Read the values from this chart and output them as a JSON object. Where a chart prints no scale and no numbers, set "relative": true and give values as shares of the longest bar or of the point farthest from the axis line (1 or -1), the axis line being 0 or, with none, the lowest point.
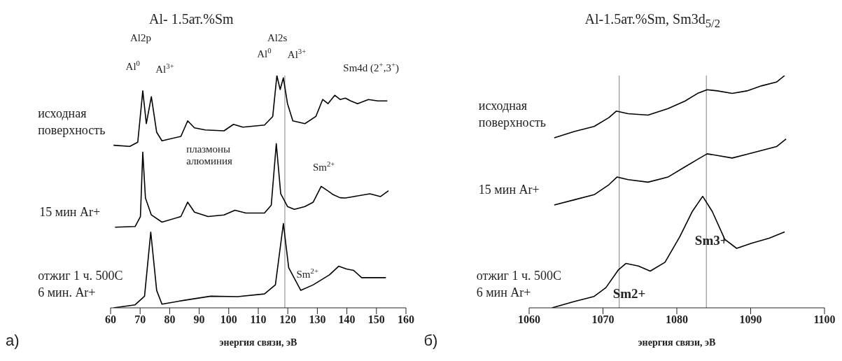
{
  "chart_data": [
    {
      "type": "line",
      "title": "Al- 1.5ат.%Sm",
      "xlabel": "энергия связи, эВ",
      "relative": true,
      "marker": "none",
      "line_style": "solid",
      "xlim": [
        60,
        160
      ],
      "xticks": [
        60,
        70,
        80,
        90,
        100,
        110,
        120,
        130,
        140,
        150,
        160
      ],
      "series": [
        {
          "name": "исходная\nповерхность",
          "color": "#000000",
          "x": [
            61.0,
            66.5,
            69.2,
            70.9,
            72.1,
            73.8,
            75.6,
            77.4,
            83.8,
            86.1,
            88.4,
            92.1,
            98.4,
            101.6,
            104.8,
            112.1,
            114.9,
            116.3,
            117.4,
            118.5,
            119.9,
            121.7,
            125.8,
            129.5,
            131.8,
            133.6,
            135.9,
            137.7,
            139.5,
            141.3,
            143.6,
            147.3,
            150.5,
            153.7
          ],
          "values": [
            0.7,
            0.695,
            0.713,
            0.934,
            0.793,
            0.909,
            0.756,
            0.719,
            0.738,
            0.805,
            0.775,
            0.766,
            0.762,
            0.79,
            0.778,
            0.787,
            0.824,
            1.0,
            0.94,
            0.99,
            0.879,
            0.805,
            0.793,
            0.824,
            0.897,
            0.879,
            0.915,
            0.897,
            0.903,
            0.891,
            0.879,
            0.897,
            0.891,
            0.891
          ]
        },
        {
          "name": "15 мин Ar+",
          "color": "#000000",
          "x": [
            61.5,
            68.3,
            70.1,
            70.9,
            71.8,
            73.8,
            77.4,
            83.8,
            86.1,
            88.4,
            93.0,
            98.4,
            102.1,
            105.8,
            112.1,
            114.4,
            116.1,
            117.6,
            119.9,
            122.2,
            125.8,
            128.6,
            131.3,
            134.1,
            135.4,
            137.7,
            139.5,
            142.3,
            147.8,
            151.4,
            154.1
          ],
          "values": [
            0.347,
            0.35,
            0.393,
            0.67,
            0.473,
            0.4,
            0.369,
            0.393,
            0.455,
            0.412,
            0.393,
            0.4,
            0.42,
            0.408,
            0.408,
            0.442,
            0.707,
            0.491,
            0.436,
            0.424,
            0.436,
            0.455,
            0.523,
            0.499,
            0.487,
            0.474,
            0.473,
            0.479,
            0.491,
            0.479,
            0.504
          ]
        },
        {
          "name": "отжиг 1 ч. 500C\n6 мин. Ar+",
          "color": "#000000",
          "x": [
            61.0,
            68.3,
            71.5,
            73.6,
            75.6,
            77.4,
            84.7,
            93.9,
            103.0,
            112.1,
            115.8,
            118.5,
            120.3,
            124.4,
            128.6,
            134.1,
            137.2,
            139.9,
            142.3,
            145.0,
            148.6,
            153.2
          ],
          "values": [
            0.0,
            0.013,
            0.05,
            0.326,
            0.075,
            0.016,
            0.032,
            0.05,
            0.048,
            0.06,
            0.099,
            0.363,
            0.173,
            0.075,
            0.099,
            0.142,
            0.179,
            0.167,
            0.161,
            0.13,
            0.13,
            0.13
          ]
        }
      ],
      "ref_lines": [
        {
          "axis": "x",
          "value": 119,
          "color": "#808080"
        }
      ],
      "annotations": [
        {
          "text": "Al$^{0}$",
          "x": 70.9,
          "y": 0.934
        },
        {
          "text": "Al$^{3+}$",
          "x": 73.8,
          "y": 0.909
        },
        {
          "text": "Al$^{0}$",
          "x": 116.3,
          "y": 1.0
        },
        {
          "text": "Al$^{3+}$",
          "x": 118.5,
          "y": 0.99
        },
        {
          "text": "Sm4d (2$^{+}$,3$^{+}$)",
          "x": 135.9,
          "y": 0.915
        },
        {
          "text": "плазмоны\nалюминия",
          "x": 86.1,
          "y": 0.805
        },
        {
          "text": "Sm$^{2+}$",
          "x": 131.3,
          "y": 0.523
        },
        {
          "text": "Sm$^{2+}$",
          "x": 128.6,
          "y": 0.099
        },
        "Al2p",
        "Al2s",
        "а)"
      ]
    },
    {
      "type": "line",
      "title": "Al-1.5ат.%Sm, Sm3d$_{5/2}$",
      "xlabel": "энергия связи, эВ",
      "relative": true,
      "marker": "none",
      "line_style": "solid",
      "xlim": [
        1060,
        1100
      ],
      "xticks": [
        1060,
        1070,
        1080,
        1090,
        1100
      ],
      "series": [
        {
          "name": "исходная\nповерхность",
          "color": "#000000",
          "x": [
            1063.4,
            1066.1,
            1068.8,
            1070.8,
            1071.8,
            1073.4,
            1076.1,
            1078.8,
            1081.1,
            1082.8,
            1084.1,
            1085.5,
            1087.5,
            1089.5,
            1091.5,
            1093.5,
            1094.6
          ],
          "values": [
            0.732,
            0.759,
            0.781,
            0.819,
            0.847,
            0.836,
            0.83,
            0.858,
            0.89,
            0.923,
            0.939,
            0.934,
            0.923,
            0.934,
            0.956,
            0.972,
            1.0
          ]
        },
        {
          "name": "15 мин Ar+",
          "color": "#000000",
          "x": [
            1063.4,
            1066.1,
            1068.8,
            1070.8,
            1071.9,
            1073.4,
            1076.1,
            1078.8,
            1081.1,
            1082.8,
            1084.1,
            1085.5,
            1087.5,
            1089.5,
            1091.5,
            1093.5,
            1094.8
          ],
          "values": [
            0.443,
            0.465,
            0.487,
            0.53,
            0.563,
            0.552,
            0.541,
            0.563,
            0.607,
            0.639,
            0.663,
            0.656,
            0.645,
            0.661,
            0.678,
            0.694,
            0.727
          ]
        },
        {
          "name": "отжиг  1 ч. 500C\n6 мин Ar+",
          "color": "#000000",
          "x": [
            1063.1,
            1066.1,
            1068.8,
            1070.4,
            1072.1,
            1073.1,
            1074.8,
            1076.4,
            1078.4,
            1080.4,
            1082.1,
            1083.5,
            1084.8,
            1086.5,
            1088.1,
            1090.1,
            1092.5,
            1094.6
          ],
          "values": [
            0.0,
            0.027,
            0.049,
            0.087,
            0.164,
            0.191,
            0.18,
            0.158,
            0.196,
            0.306,
            0.415,
            0.48,
            0.415,
            0.295,
            0.256,
            0.278,
            0.3,
            0.327
          ]
        }
      ],
      "ref_lines": [
        {
          "axis": "x",
          "value": 1072.2,
          "color": "#808080"
        },
        {
          "axis": "x",
          "value": 1084,
          "color": "#808080"
        }
      ],
      "annotations": [
        {
          "text": "Sm2+",
          "x": 1072.1,
          "y": 0.164
        },
        {
          "text": "Sm3+",
          "x": 1086.5,
          "y": 0.295
        },
        "б)"
      ]
    }
  ]
}
